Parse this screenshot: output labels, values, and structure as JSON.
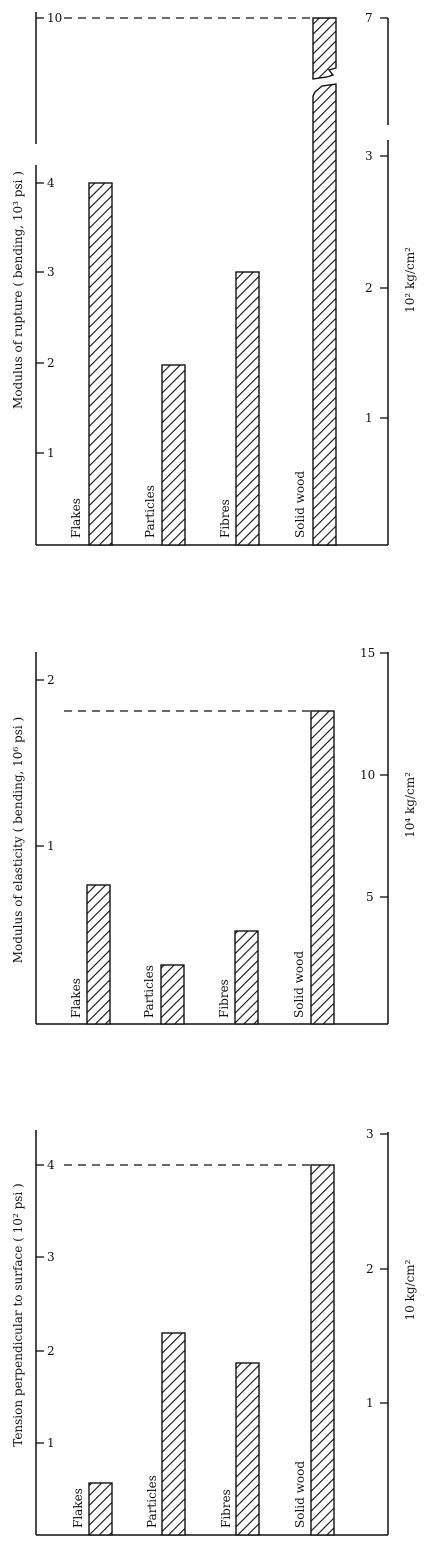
{
  "chart_data": [
    {
      "type": "bar",
      "categories": [
        "Flakes",
        "Particles",
        "Fibres",
        "Solid wood"
      ],
      "values": [
        4,
        2,
        3,
        10
      ],
      "ylabel": "Modulus of rupture ( bending, 10³ psi )",
      "y2label": "10² kg/cm²",
      "y_ticks": [
        "1",
        "2",
        "3",
        "4",
        "10"
      ],
      "y2_ticks": [
        "1",
        "2",
        "3",
        "7"
      ],
      "axis_break": true
    },
    {
      "type": "bar",
      "categories": [
        "Flakes",
        "Particles",
        "Fibres",
        "Solid wood"
      ],
      "values": [
        0.8,
        0.32,
        0.52,
        1.8
      ],
      "ylabel": "Modulus of elasticity ( bending, 10⁶ psi )",
      "y2label": "10⁴ kg/cm²",
      "y_ticks": [
        "1",
        "2"
      ],
      "y2_ticks": [
        "5",
        "10",
        "15"
      ],
      "ylim": [
        0,
        2.2
      ]
    },
    {
      "type": "bar",
      "categories": [
        "Flakes",
        "Particles",
        "Fibres",
        "Solid wood"
      ],
      "values": [
        0.55,
        2.2,
        1.85,
        4.0
      ],
      "ylabel": "Tension perpendicular to surface ( 10² psi )",
      "y2label": "10 kg/cm²",
      "y_ticks": [
        "1",
        "2",
        "3",
        "4"
      ],
      "y2_ticks": [
        "1",
        "2",
        "3"
      ],
      "ylim": [
        0,
        4.3
      ]
    }
  ]
}
